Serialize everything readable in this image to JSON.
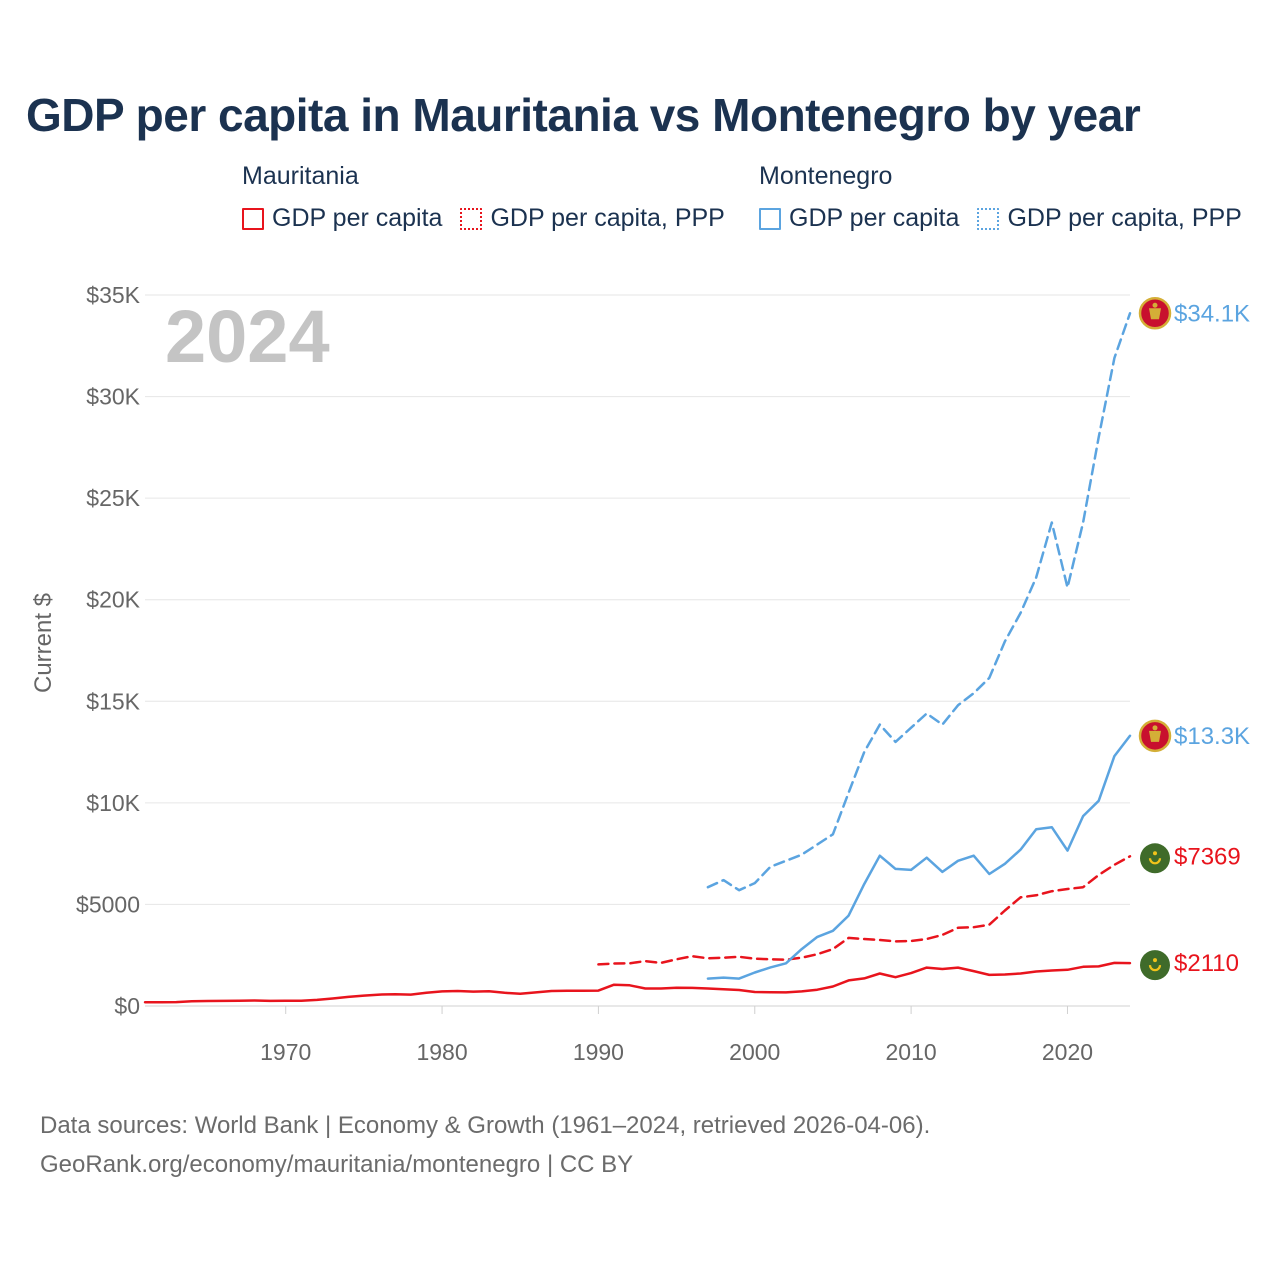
{
  "title": "GDP per capita in Mauritania vs Montenegro by year",
  "legend": {
    "groups": [
      {
        "name": "Mauritania",
        "color": "#e8141d",
        "items": [
          {
            "label": "GDP per capita",
            "style": "solid"
          },
          {
            "label": "GDP per capita, PPP",
            "style": "dotted"
          }
        ]
      },
      {
        "name": "Montenegro",
        "color": "#5ba4e0",
        "items": [
          {
            "label": "GDP per capita",
            "style": "solid"
          },
          {
            "label": "GDP per capita, PPP",
            "style": "dotted"
          }
        ]
      }
    ]
  },
  "year_label": "2024",
  "footer": {
    "line1": "Data sources: World Bank | Economy & Growth (1961–2024, retrieved 2026-04-06).",
    "line2": "GeoRank.org/economy/mauritania/montenegro | CC BY"
  },
  "colors": {
    "mauritania": "#e8141d",
    "montenegro": "#5ba4e0",
    "title": "#1b3250",
    "axis_text": "#666666",
    "grid": "#e6e6e6"
  },
  "chart_data": {
    "type": "line",
    "title": "GDP per capita in Mauritania vs Montenegro by year",
    "xlabel": "",
    "ylabel": "Current $",
    "xlim": [
      1961,
      2024
    ],
    "ylim": [
      0,
      35000
    ],
    "x_ticks": [
      1970,
      1980,
      1990,
      2000,
      2010,
      2020
    ],
    "y_ticks": [
      {
        "value": 0,
        "label": "$0"
      },
      {
        "value": 5000,
        "label": "$5000"
      },
      {
        "value": 10000,
        "label": "$10K"
      },
      {
        "value": 15000,
        "label": "$15K"
      },
      {
        "value": 20000,
        "label": "$20K"
      },
      {
        "value": 25000,
        "label": "$25K"
      },
      {
        "value": 30000,
        "label": "$30K"
      },
      {
        "value": 35000,
        "label": "$35K"
      }
    ],
    "grid": true,
    "series": [
      {
        "name": "Mauritania GDP per capita",
        "country": "mauritania",
        "dash": "solid",
        "end_label": "$2110",
        "x": [
          1961,
          1962,
          1963,
          1964,
          1965,
          1966,
          1967,
          1968,
          1969,
          1970,
          1971,
          1972,
          1973,
          1974,
          1975,
          1976,
          1977,
          1978,
          1979,
          1980,
          1981,
          1982,
          1983,
          1984,
          1985,
          1986,
          1987,
          1988,
          1989,
          1990,
          1991,
          1992,
          1993,
          1994,
          1995,
          1996,
          1997,
          1998,
          1999,
          2000,
          2001,
          2002,
          2003,
          2004,
          2005,
          2006,
          2007,
          2008,
          2009,
          2010,
          2011,
          2012,
          2013,
          2014,
          2015,
          2016,
          2017,
          2018,
          2019,
          2020,
          2021,
          2022,
          2023,
          2024
        ],
        "y": [
          180,
          185,
          190,
          230,
          245,
          250,
          255,
          270,
          250,
          255,
          260,
          300,
          370,
          450,
          510,
          560,
          580,
          560,
          650,
          720,
          740,
          710,
          730,
          650,
          600,
          670,
          740,
          750,
          750,
          760,
          1050,
          1020,
          860,
          860,
          900,
          890,
          860,
          820,
          790,
          690,
          680,
          670,
          720,
          800,
          960,
          1260,
          1360,
          1600,
          1420,
          1620,
          1890,
          1820,
          1890,
          1720,
          1530,
          1550,
          1600,
          1700,
          1750,
          1780,
          1930,
          1950,
          2120,
          2110
        ]
      },
      {
        "name": "Mauritania GDP per capita, PPP",
        "country": "mauritania",
        "dash": "dashed",
        "end_label": "$7369",
        "x": [
          1990,
          1991,
          1992,
          1993,
          1994,
          1995,
          1996,
          1997,
          1998,
          1999,
          2000,
          2001,
          2002,
          2003,
          2004,
          2005,
          2006,
          2007,
          2008,
          2009,
          2010,
          2011,
          2012,
          2013,
          2014,
          2015,
          2016,
          2017,
          2018,
          2019,
          2020,
          2021,
          2022,
          2023,
          2024
        ],
        "y": [
          2050,
          2090,
          2100,
          2210,
          2120,
          2300,
          2450,
          2350,
          2380,
          2420,
          2330,
          2300,
          2280,
          2380,
          2550,
          2800,
          3350,
          3300,
          3250,
          3180,
          3200,
          3300,
          3500,
          3850,
          3880,
          4000,
          4700,
          5350,
          5450,
          5650,
          5760,
          5850,
          6450,
          6950,
          7369
        ]
      },
      {
        "name": "Montenegro GDP per capita",
        "country": "montenegro",
        "dash": "solid",
        "end_label": "$13.3K",
        "x": [
          1997,
          1998,
          1999,
          2000,
          2001,
          2002,
          2003,
          2004,
          2005,
          2006,
          2007,
          2008,
          2009,
          2010,
          2011,
          2012,
          2013,
          2014,
          2015,
          2016,
          2017,
          2018,
          2019,
          2020,
          2021,
          2022,
          2023,
          2024
        ],
        "y": [
          1350,
          1400,
          1350,
          1650,
          1900,
          2100,
          2800,
          3400,
          3700,
          4450,
          6000,
          7400,
          6750,
          6700,
          7300,
          6600,
          7150,
          7400,
          6500,
          7000,
          7700,
          8700,
          8800,
          7650,
          9350,
          10100,
          12300,
          13300
        ]
      },
      {
        "name": "Montenegro GDP per capita, PPP",
        "country": "montenegro",
        "dash": "dashed",
        "end_label": "$34.1K",
        "x": [
          1997,
          1998,
          1999,
          2000,
          2001,
          2002,
          2003,
          2004,
          2005,
          2006,
          2007,
          2008,
          2009,
          2010,
          2011,
          2012,
          2013,
          2014,
          2015,
          2016,
          2017,
          2018,
          2019,
          2020,
          2021,
          2022,
          2023,
          2024
        ],
        "y": [
          5850,
          6200,
          5700,
          6050,
          6850,
          7150,
          7450,
          7950,
          8450,
          10500,
          12500,
          13850,
          13000,
          13700,
          14400,
          13850,
          14800,
          15400,
          16150,
          17950,
          19350,
          21100,
          23800,
          20600,
          23800,
          28000,
          31900,
          34100
        ]
      }
    ]
  }
}
